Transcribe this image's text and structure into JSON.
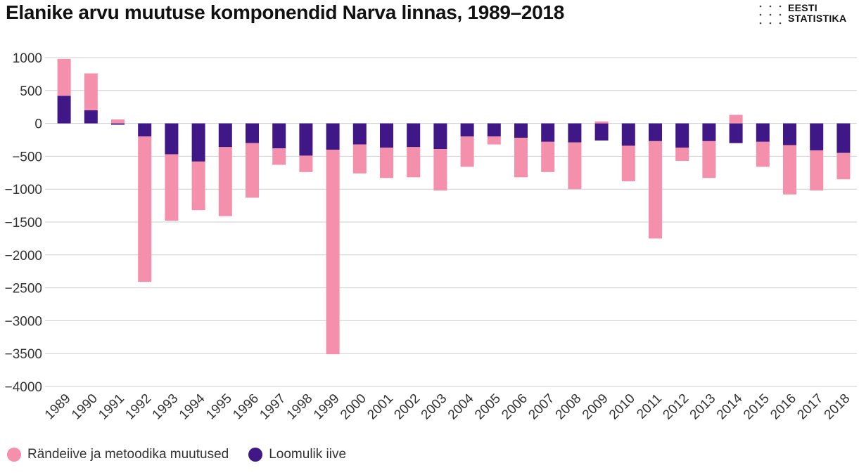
{
  "title": "Elanike arvu muutuse komponendid Narva linnas, 1989–2018",
  "logo": {
    "line1": "EESTI",
    "line2": "STATISTIKA"
  },
  "colors": {
    "migration": "#f48fac",
    "natural": "#3f1786",
    "grid": "#cfcfcf"
  },
  "chart_data": {
    "type": "bar",
    "stacked": true,
    "categories": [
      "1989",
      "1990",
      "1991",
      "1992",
      "1993",
      "1994",
      "1995",
      "1996",
      "1997",
      "1998",
      "1999",
      "2000",
      "2001",
      "2002",
      "2003",
      "2004",
      "2005",
      "2006",
      "2007",
      "2008",
      "2009",
      "2010",
      "2011",
      "2012",
      "2013",
      "2014",
      "2015",
      "2016",
      "2017",
      "2018"
    ],
    "series": [
      {
        "name": "Loomulik iive",
        "color": "#3f1786",
        "values": [
          420,
          200,
          -20,
          -200,
          -470,
          -580,
          -360,
          -300,
          -380,
          -490,
          -400,
          -320,
          -370,
          -360,
          -390,
          -200,
          -200,
          -220,
          -280,
          -290,
          -260,
          -340,
          -270,
          -370,
          -270,
          -300,
          -280,
          -330,
          -410,
          -450
        ]
      },
      {
        "name": "Rändeiive ja metoodika muutused",
        "color": "#f48fac",
        "values": [
          560,
          560,
          60,
          -2210,
          -1010,
          -740,
          -1050,
          -830,
          -250,
          -250,
          -3110,
          -440,
          -460,
          -460,
          -630,
          -460,
          -120,
          -600,
          -460,
          -710,
          30,
          -540,
          -1480,
          -200,
          -560,
          130,
          -380,
          -750,
          -610,
          -400
        ]
      }
    ],
    "ylim": [
      -4000,
      1000
    ],
    "yticks": [
      1000,
      500,
      0,
      -500,
      -1000,
      -1500,
      -2000,
      -2500,
      -3000,
      -3500,
      -4000
    ],
    "ytick_labels": [
      "1000",
      "500",
      "0",
      "−500",
      "−1000",
      "−1500",
      "−2000",
      "−2500",
      "−3000",
      "−3500",
      "−4000"
    ],
    "legend": [
      {
        "label": "Rändeiive ja metoodika muutused",
        "color": "#f48fac"
      },
      {
        "label": "Loomulik iive",
        "color": "#3f1786"
      }
    ],
    "grid": true,
    "legend_position": "bottom-left"
  }
}
